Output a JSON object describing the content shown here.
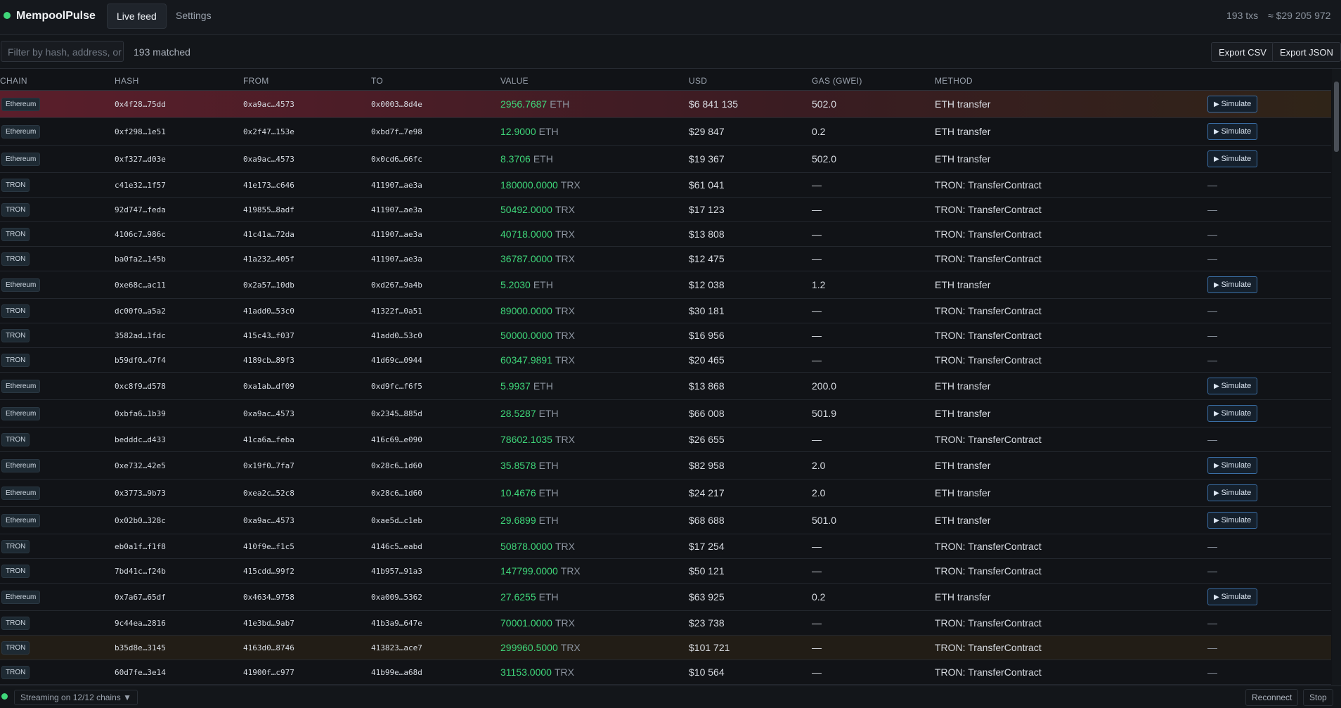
{
  "app": {
    "name": "MempoolPulse",
    "tabs": [
      "Live feed",
      "Settings"
    ],
    "tx_count": "193 txs",
    "total_usd": "≈ $29 205 972"
  },
  "toolbar": {
    "filter_placeholder": "Filter by hash, address, or",
    "matched": "193 matched",
    "buttons": [
      "Export CSV",
      "Export JSON"
    ]
  },
  "table": {
    "columns": [
      "CHAIN",
      "HASH",
      "FROM",
      "TO",
      "VALUE",
      "USD",
      "GAS (GWEI)",
      "METHOD"
    ],
    "rows": [
      {
        "chain": "Ethereum",
        "hash": "0x4f28…75dd",
        "from": "0xa9ac…4573",
        "to": "0x0003…8d4e",
        "amount": "2956.7687",
        "unit": "ETH",
        "usd": "$6 841 135",
        "gas": "502.0",
        "method": "ETH transfer",
        "action": "Simulate"
      },
      {
        "chain": "Ethereum",
        "hash": "0xf298…1e51",
        "from": "0x2f47…153e",
        "to": "0xbd7f…7e98",
        "amount": "12.9000",
        "unit": "ETH",
        "usd": "$29 847",
        "gas": "0.2",
        "method": "ETH transfer",
        "action": "Simulate"
      },
      {
        "chain": "Ethereum",
        "hash": "0xf327…d03e",
        "from": "0xa9ac…4573",
        "to": "0x0cd6…66fc",
        "amount": "8.3706",
        "unit": "ETH",
        "usd": "$19 367",
        "gas": "502.0",
        "method": "ETH transfer",
        "action": "Simulate"
      },
      {
        "chain": "TRON",
        "hash": "c41e32…1f57",
        "from": "41e173…c646",
        "to": "411907…ae3a",
        "amount": "180000.0000",
        "unit": "TRX",
        "usd": "$61 041",
        "gas": "—",
        "method": "TRON: TransferContract",
        "action": "—"
      },
      {
        "chain": "TRON",
        "hash": "92d747…feda",
        "from": "419855…8adf",
        "to": "411907…ae3a",
        "amount": "50492.0000",
        "unit": "TRX",
        "usd": "$17 123",
        "gas": "—",
        "method": "TRON: TransferContract",
        "action": "—"
      },
      {
        "chain": "TRON",
        "hash": "4106c7…986c",
        "from": "41c41a…72da",
        "to": "411907…ae3a",
        "amount": "40718.0000",
        "unit": "TRX",
        "usd": "$13 808",
        "gas": "—",
        "method": "TRON: TransferContract",
        "action": "—"
      },
      {
        "chain": "TRON",
        "hash": "ba0fa2…145b",
        "from": "41a232…405f",
        "to": "411907…ae3a",
        "amount": "36787.0000",
        "unit": "TRX",
        "usd": "$12 475",
        "gas": "—",
        "method": "TRON: TransferContract",
        "action": "—"
      },
      {
        "chain": "Ethereum",
        "hash": "0xe68c…ac11",
        "from": "0x2a57…10db",
        "to": "0xd267…9a4b",
        "amount": "5.2030",
        "unit": "ETH",
        "usd": "$12 038",
        "gas": "1.2",
        "method": "ETH transfer",
        "action": "Simulate"
      },
      {
        "chain": "TRON",
        "hash": "dc00f0…a5a2",
        "from": "41add0…53c0",
        "to": "41322f…0a51",
        "amount": "89000.0000",
        "unit": "TRX",
        "usd": "$30 181",
        "gas": "—",
        "method": "TRON: TransferContract",
        "action": "—"
      },
      {
        "chain": "TRON",
        "hash": "3582ad…1fdc",
        "from": "415c43…f037",
        "to": "41add0…53c0",
        "amount": "50000.0000",
        "unit": "TRX",
        "usd": "$16 956",
        "gas": "—",
        "method": "TRON: TransferContract",
        "action": "—"
      },
      {
        "chain": "TRON",
        "hash": "b59df0…47f4",
        "from": "4189cb…89f3",
        "to": "41d69c…0944",
        "amount": "60347.9891",
        "unit": "TRX",
        "usd": "$20 465",
        "gas": "—",
        "method": "TRON: TransferContract",
        "action": "—"
      },
      {
        "chain": "Ethereum",
        "hash": "0xc8f9…d578",
        "from": "0xa1ab…df09",
        "to": "0xd9fc…f6f5",
        "amount": "5.9937",
        "unit": "ETH",
        "usd": "$13 868",
        "gas": "200.0",
        "method": "ETH transfer",
        "action": "Simulate"
      },
      {
        "chain": "Ethereum",
        "hash": "0xbfa6…1b39",
        "from": "0xa9ac…4573",
        "to": "0x2345…885d",
        "amount": "28.5287",
        "unit": "ETH",
        "usd": "$66 008",
        "gas": "501.9",
        "method": "ETH transfer",
        "action": "Simulate"
      },
      {
        "chain": "TRON",
        "hash": "bedddc…d433",
        "from": "41ca6a…feba",
        "to": "416c69…e090",
        "amount": "78602.1035",
        "unit": "TRX",
        "usd": "$26 655",
        "gas": "—",
        "method": "TRON: TransferContract",
        "action": "—"
      },
      {
        "chain": "Ethereum",
        "hash": "0xe732…42e5",
        "from": "0x19f0…7fa7",
        "to": "0x28c6…1d60",
        "amount": "35.8578",
        "unit": "ETH",
        "usd": "$82 958",
        "gas": "2.0",
        "method": "ETH transfer",
        "action": "Simulate"
      },
      {
        "chain": "Ethereum",
        "hash": "0x3773…9b73",
        "from": "0xea2c…52c8",
        "to": "0x28c6…1d60",
        "amount": "10.4676",
        "unit": "ETH",
        "usd": "$24 217",
        "gas": "2.0",
        "method": "ETH transfer",
        "action": "Simulate"
      },
      {
        "chain": "Ethereum",
        "hash": "0x02b0…328c",
        "from": "0xa9ac…4573",
        "to": "0xae5d…c1eb",
        "amount": "29.6899",
        "unit": "ETH",
        "usd": "$68 688",
        "gas": "501.0",
        "method": "ETH transfer",
        "action": "Simulate"
      },
      {
        "chain": "TRON",
        "hash": "eb0a1f…f1f8",
        "from": "410f9e…f1c5",
        "to": "4146c5…eabd",
        "amount": "50878.0000",
        "unit": "TRX",
        "usd": "$17 254",
        "gas": "—",
        "method": "TRON: TransferContract",
        "action": "—"
      },
      {
        "chain": "TRON",
        "hash": "7bd41c…f24b",
        "from": "415cdd…99f2",
        "to": "41b957…91a3",
        "amount": "147799.0000",
        "unit": "TRX",
        "usd": "$50 121",
        "gas": "—",
        "method": "TRON: TransferContract",
        "action": "—"
      },
      {
        "chain": "Ethereum",
        "hash": "0x7a67…65df",
        "from": "0x4634…9758",
        "to": "0xa009…5362",
        "amount": "27.6255",
        "unit": "ETH",
        "usd": "$63 925",
        "gas": "0.2",
        "method": "ETH transfer",
        "action": "Simulate"
      },
      {
        "chain": "TRON",
        "hash": "9c44ea…2816",
        "from": "41e3bd…9ab7",
        "to": "41b3a9…647e",
        "amount": "70001.0000",
        "unit": "TRX",
        "usd": "$23 738",
        "gas": "—",
        "method": "TRON: TransferContract",
        "action": "—"
      },
      {
        "chain": "TRON",
        "hash": "b35d8e…3145",
        "from": "4163d0…8746",
        "to": "413823…ace7",
        "amount": "299960.5000",
        "unit": "TRX",
        "usd": "$101 721",
        "gas": "—",
        "method": "TRON: TransferContract",
        "action": "—"
      },
      {
        "chain": "TRON",
        "hash": "60d7fe…3e14",
        "from": "41900f…c977",
        "to": "41b99e…a68d",
        "amount": "31153.0000",
        "unit": "TRX",
        "usd": "$10 564",
        "gas": "—",
        "method": "TRON: TransferContract",
        "action": "—"
      }
    ]
  },
  "footer": {
    "status": "Streaming on 12/12 chains ▼",
    "buttons": [
      "Reconnect",
      "Stop"
    ]
  }
}
